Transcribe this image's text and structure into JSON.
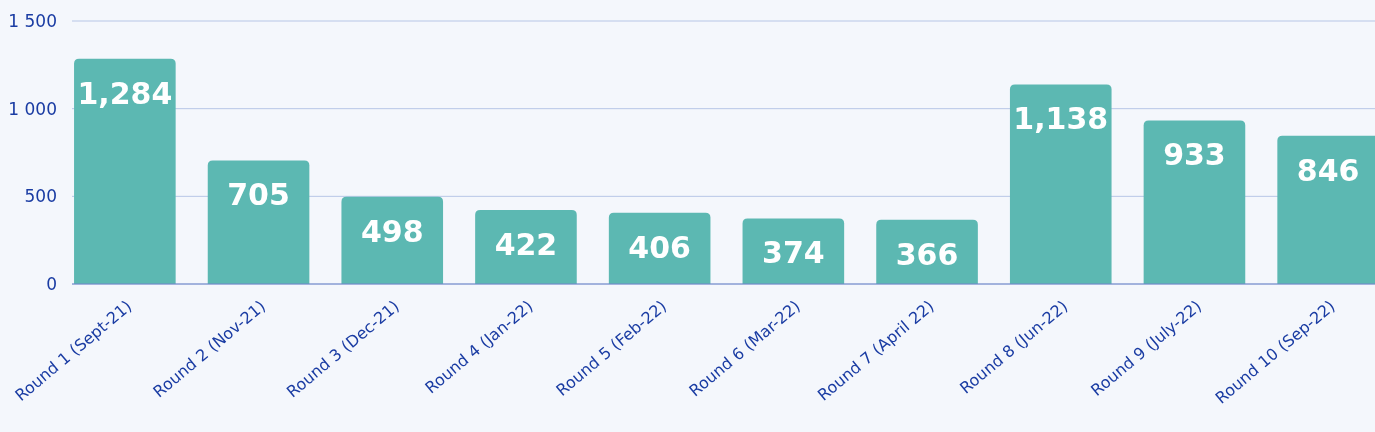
{
  "chart_data": {
    "type": "bar",
    "categories": [
      "Round 1 (Sept-21)",
      "Round 2 (Nov-21)",
      "Round 3 (Dec-21)",
      "Round 4 (Jan-22)",
      "Round 5 (Feb-22)",
      "Round 6 (Mar-22)",
      "Round 7 (April 22)",
      "Round 8 (Jun-22)",
      "Round 9 (July-22)",
      "Round 10 (Sep-22)"
    ],
    "values": [
      1284,
      705,
      498,
      422,
      406,
      374,
      366,
      1138,
      933,
      846
    ],
    "value_labels": [
      "1,284",
      "705",
      "498",
      "422",
      "406",
      "374",
      "366",
      "1,138",
      "933",
      "846"
    ],
    "color": "#5cb8b2",
    "ylim": [
      0,
      1500
    ],
    "yticks": [
      0,
      500,
      {
        "value": 1000,
        "label": "1 000"
      },
      {
        "value": 1500,
        "label": "1 500"
      }
    ],
    "grid": "y"
  }
}
